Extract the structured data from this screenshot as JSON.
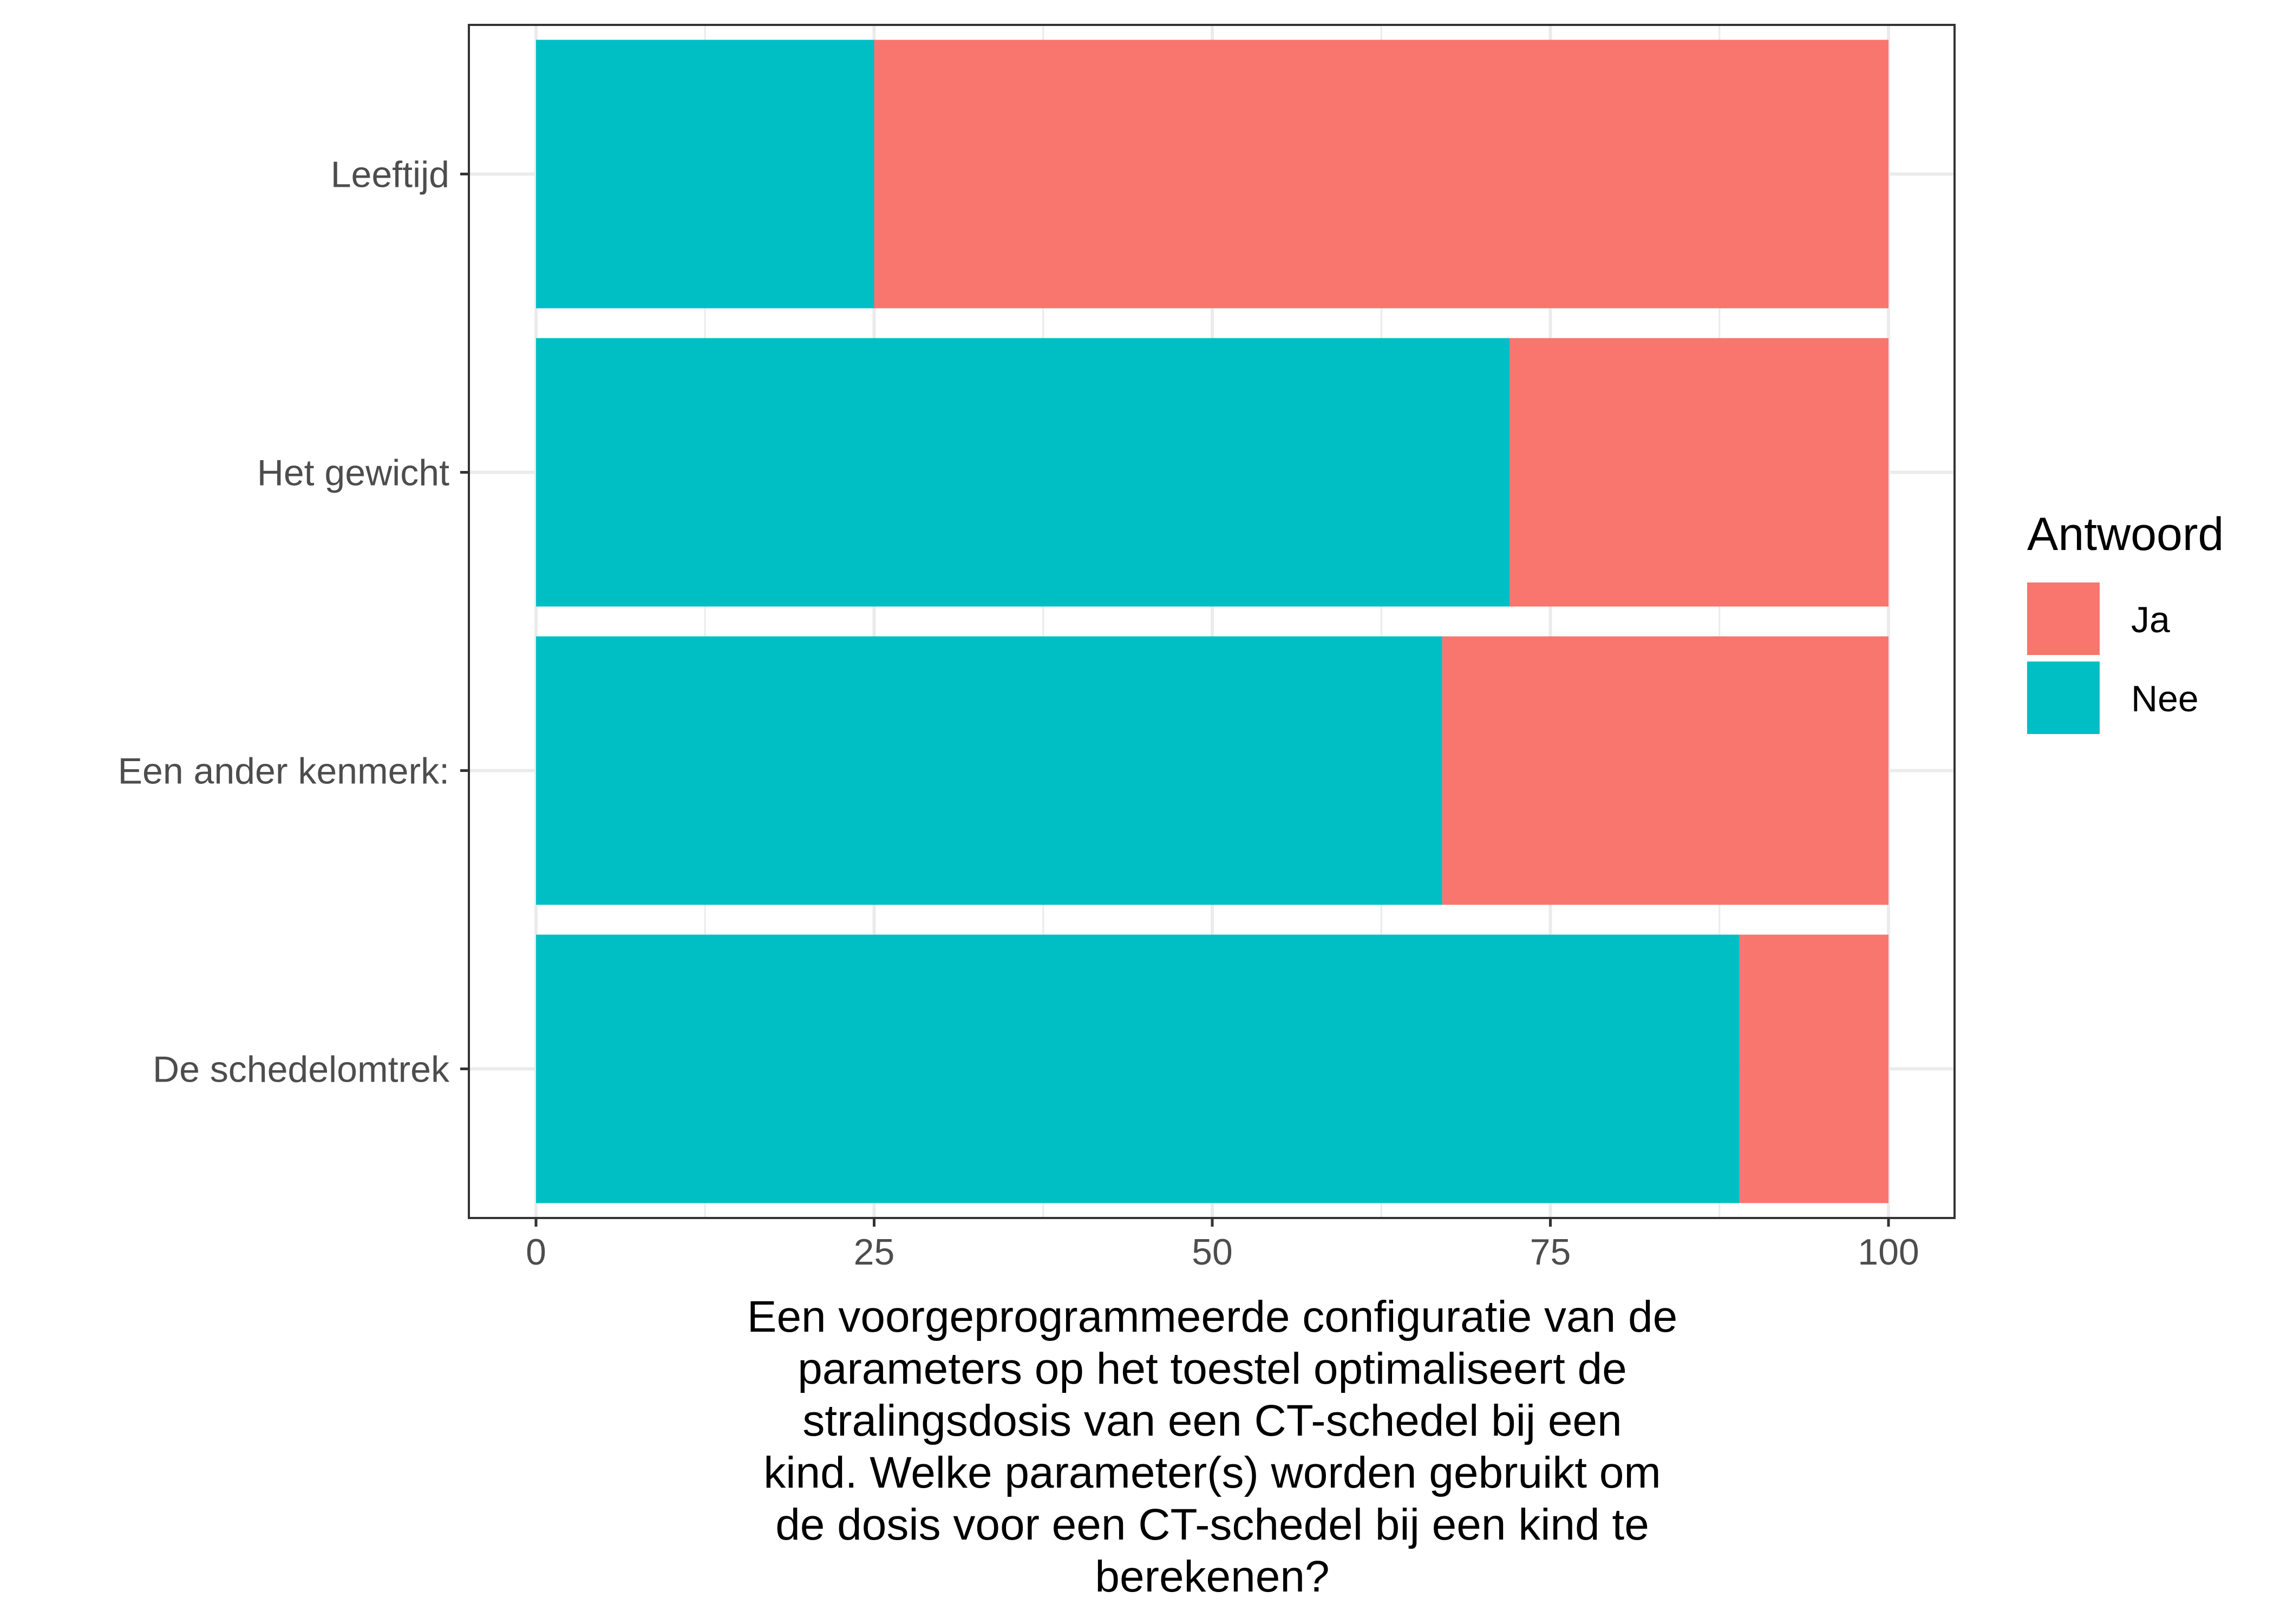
{
  "chart_data": {
    "type": "bar",
    "orientation": "horizontal",
    "stacked": true,
    "categories": [
      "Leeftijd",
      "Het gewicht",
      "Een ander kenmerk:",
      "De schedelomtrek"
    ],
    "series": [
      {
        "name": "Ja",
        "color": "#F8766D",
        "values": [
          75,
          28,
          33,
          11
        ]
      },
      {
        "name": "Nee",
        "color": "#00BFC4",
        "values": [
          25,
          72,
          67,
          89
        ]
      }
    ],
    "title": "",
    "xlabel": "Een voorgeprogrammeerde configuratie van de parameters op het toestel optimaliseert de stralingsdosis van een CT-schedel bij een kind. Welke parameter(s) worden gebruikt om de dosis voor een CT-schedel bij een kind te berekenen?",
    "xlabel_lines": [
      "Een voorgeprogrammeerde configuratie van de",
      "parameters op het toestel optimaliseert de",
      "stralingsdosis van een CT-schedel bij een",
      "kind. Welke parameter(s) worden gebruikt om",
      "de dosis voor een CT-schedel bij een kind te",
      "berekenen?"
    ],
    "ylabel": "",
    "xlim": [
      0,
      100
    ],
    "xticks": [
      0,
      25,
      50,
      75,
      100
    ],
    "grid": true,
    "legend": {
      "title": "Antwoord",
      "position": "right"
    }
  }
}
